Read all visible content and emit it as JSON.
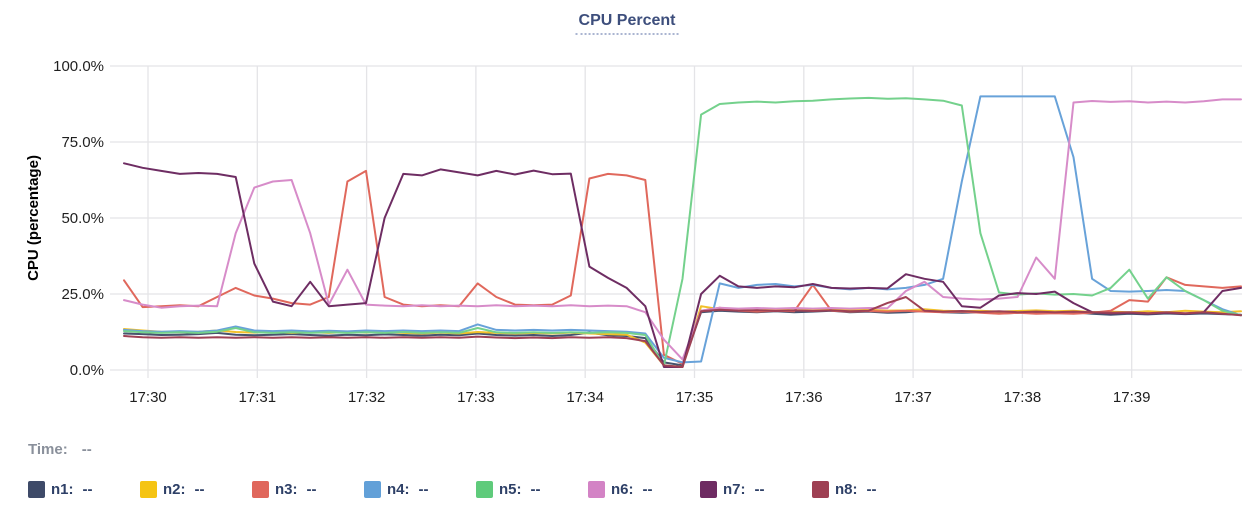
{
  "title": "CPU Percent",
  "tooltip": {
    "time_label": "Time:",
    "time_value": "--"
  },
  "legend": [
    {
      "label": "n1:",
      "value": "--",
      "color": "#3e4a68"
    },
    {
      "label": "n2:",
      "value": "--",
      "color": "#f5c413"
    },
    {
      "label": "n3:",
      "value": "--",
      "color": "#e0675c"
    },
    {
      "label": "n4:",
      "value": "--",
      "color": "#62a0d8"
    },
    {
      "label": "n5:",
      "value": "--",
      "color": "#5fcb7b"
    },
    {
      "label": "n6:",
      "value": "--",
      "color": "#d383c5"
    },
    {
      "label": "n7:",
      "value": "--",
      "color": "#6e2b62"
    },
    {
      "label": "n8:",
      "value": "--",
      "color": "#9e4053"
    }
  ],
  "chart_data": {
    "type": "line",
    "title": "CPU Percent",
    "ylabel": "CPU (percentage)",
    "ylim": [
      0,
      100
    ],
    "grid": true,
    "y_tick_labels": [
      "100.0%",
      "75.0%",
      "50.0%",
      "25.0%",
      "0.0%"
    ],
    "y_tick_values": [
      100,
      75,
      50,
      25,
      0
    ],
    "x_tick_labels": [
      "17:30",
      "17:31",
      "17:32",
      "17:33",
      "17:34",
      "17:35",
      "17:36",
      "17:37",
      "17:38",
      "17:39"
    ],
    "x_start": "17:29:47",
    "x_end": "17:39:58",
    "sample_interval_seconds": 10.2,
    "series": [
      {
        "name": "n1",
        "color": "#46536e",
        "values": [
          12,
          11.8,
          11.5,
          11.6,
          11.8,
          12.2,
          11.6,
          11.4,
          11.6,
          11.8,
          11.5,
          11.3,
          11.6,
          11.4,
          11.7,
          11.5,
          11.3,
          11.6,
          11.4,
          12,
          11.5,
          11.3,
          11.5,
          11.2,
          11.5,
          12.3,
          11.4,
          11.2,
          10.5,
          2.5,
          1.5,
          19,
          19.5,
          19.2,
          19,
          19.3,
          19,
          19.2,
          19.5,
          19,
          19.2,
          18.8,
          19,
          19.5,
          19,
          18.8,
          19,
          18.6,
          18.8,
          19,
          18.8,
          19,
          18.5,
          18.2,
          18.5,
          18.3,
          18.6,
          18.4,
          18.6,
          18.4,
          18.2
        ]
      },
      {
        "name": "n2",
        "color": "#f2c029",
        "values": [
          13.5,
          13,
          12.6,
          12.4,
          12.6,
          13,
          12.5,
          12.3,
          12.5,
          12.2,
          12.4,
          12.2,
          12.5,
          12.3,
          12.5,
          12.2,
          12,
          12.3,
          12,
          12.5,
          12.2,
          12,
          12.2,
          12,
          12.3,
          12,
          11.8,
          11.6,
          9,
          1.5,
          1,
          21,
          20,
          19.8,
          19.5,
          20,
          19.6,
          19.8,
          20,
          19.6,
          19.8,
          19.5,
          19.6,
          20,
          19.5,
          19.3,
          19.5,
          19.2,
          19.4,
          19.6,
          19.3,
          19.5,
          19,
          19.2,
          19,
          19.3,
          19,
          19.5,
          19.2,
          19,
          19.3
        ]
      },
      {
        "name": "n3",
        "color": "#e0685c",
        "values": [
          29.5,
          20.7,
          21,
          21.3,
          21,
          24,
          27,
          24.5,
          23.5,
          22,
          21.5,
          24,
          62,
          65.5,
          24,
          21.5,
          21,
          21.3,
          21,
          28.5,
          24,
          21.5,
          21.3,
          21.5,
          24.5,
          63,
          64.5,
          64,
          62.5,
          5,
          2,
          19.5,
          20.5,
          19.5,
          19.2,
          19.5,
          19.3,
          28,
          19.5,
          19.2,
          19.4,
          19.2,
          19.5,
          19.2,
          19,
          19.2,
          18.8,
          18.5,
          18.8,
          18.5,
          18.7,
          18.5,
          18.8,
          19.5,
          23,
          22.5,
          30.5,
          28,
          27.5,
          27,
          27.5
        ]
      },
      {
        "name": "n4",
        "color": "#68a2d9",
        "values": [
          13.2,
          12.8,
          12.6,
          12.8,
          12.6,
          13,
          14.3,
          13,
          12.8,
          13,
          12.7,
          12.9,
          12.7,
          13,
          12.8,
          13,
          12.8,
          13,
          12.8,
          15,
          13.2,
          13,
          13.2,
          13,
          13.2,
          13,
          12.8,
          12.6,
          12,
          4,
          2.5,
          2.8,
          28.5,
          27,
          28,
          28.3,
          27.5,
          28,
          27,
          26.5,
          27,
          26.5,
          27,
          28,
          30,
          62,
          90,
          90,
          90,
          90,
          90,
          70,
          30,
          26,
          25.8,
          26,
          26.3,
          26,
          23,
          20,
          18
        ]
      },
      {
        "name": "n5",
        "color": "#74d18c",
        "values": [
          12.8,
          12.4,
          12.2,
          12.4,
          12.2,
          12.6,
          13.8,
          12.4,
          12.2,
          12.4,
          12.2,
          12.4,
          12.2,
          12.4,
          12.2,
          12.5,
          12.2,
          12.4,
          12.2,
          13.8,
          12.4,
          12.2,
          12.4,
          12.2,
          12.4,
          12.2,
          12.4,
          12.2,
          11.5,
          1.5,
          30,
          84,
          87.5,
          88,
          88.3,
          88,
          88.4,
          88.6,
          89,
          89.3,
          89.5,
          89.2,
          89.4,
          89,
          88.6,
          87,
          45,
          25.5,
          24.8,
          25.2,
          24.8,
          25,
          24.5,
          27,
          33,
          23.5,
          30.5,
          26,
          23,
          19.5,
          18
        ]
      },
      {
        "name": "n6",
        "color": "#d78cc9",
        "values": [
          23,
          21.5,
          20.5,
          21,
          21.2,
          21,
          45,
          60,
          62,
          62.5,
          45,
          21.5,
          33,
          21.5,
          21.2,
          21,
          21.3,
          21,
          21.2,
          21,
          21.3,
          21,
          21.2,
          21,
          21.3,
          21,
          21.2,
          21,
          19,
          10,
          3.5,
          19.5,
          20.5,
          20.2,
          20.4,
          20.2,
          20.4,
          20.2,
          20.4,
          20.2,
          20.4,
          20.3,
          26,
          29,
          24,
          23.5,
          23.2,
          23.5,
          24,
          37,
          30,
          88,
          88.5,
          88.2,
          88.4,
          88,
          88.3,
          88,
          88.4,
          89,
          89
        ]
      },
      {
        "name": "n7",
        "color": "#6e2d63",
        "values": [
          68,
          66.5,
          65.5,
          64.5,
          64.8,
          64.5,
          63.5,
          35,
          22.5,
          21,
          29,
          21,
          21.5,
          22,
          50,
          64.5,
          64,
          66,
          65,
          64,
          65.5,
          64.3,
          65.6,
          64.4,
          64.6,
          34,
          30.3,
          27,
          21,
          1,
          1,
          25,
          31,
          27.5,
          27,
          27.5,
          27.2,
          28.3,
          27,
          26.8,
          27,
          26.8,
          31.5,
          30,
          29,
          21,
          20.5,
          24.5,
          25.3,
          25,
          25.8,
          22,
          19,
          18.6,
          18.8,
          18.5,
          18.8,
          18.5,
          19,
          26,
          27
        ]
      },
      {
        "name": "n8",
        "color": "#9e4155",
        "values": [
          11.2,
          10.8,
          10.6,
          10.8,
          10.6,
          10.8,
          10.6,
          10.8,
          10.6,
          10.8,
          10.6,
          10.8,
          10.6,
          10.8,
          10.6,
          10.8,
          10.6,
          10.8,
          10.6,
          11,
          10.7,
          10.5,
          10.7,
          10.5,
          10.8,
          10.6,
          10.8,
          10.5,
          9.5,
          1.5,
          1,
          19.3,
          19.8,
          19.5,
          19.7,
          19.4,
          19.6,
          19.4,
          19.6,
          19.3,
          19.5,
          22,
          24,
          19.5,
          19.2,
          19.4,
          19.1,
          19.3,
          19,
          19.2,
          19,
          19.2,
          19,
          18.8,
          19,
          18.7,
          19,
          18.7,
          19,
          18.5,
          18
        ]
      }
    ]
  }
}
